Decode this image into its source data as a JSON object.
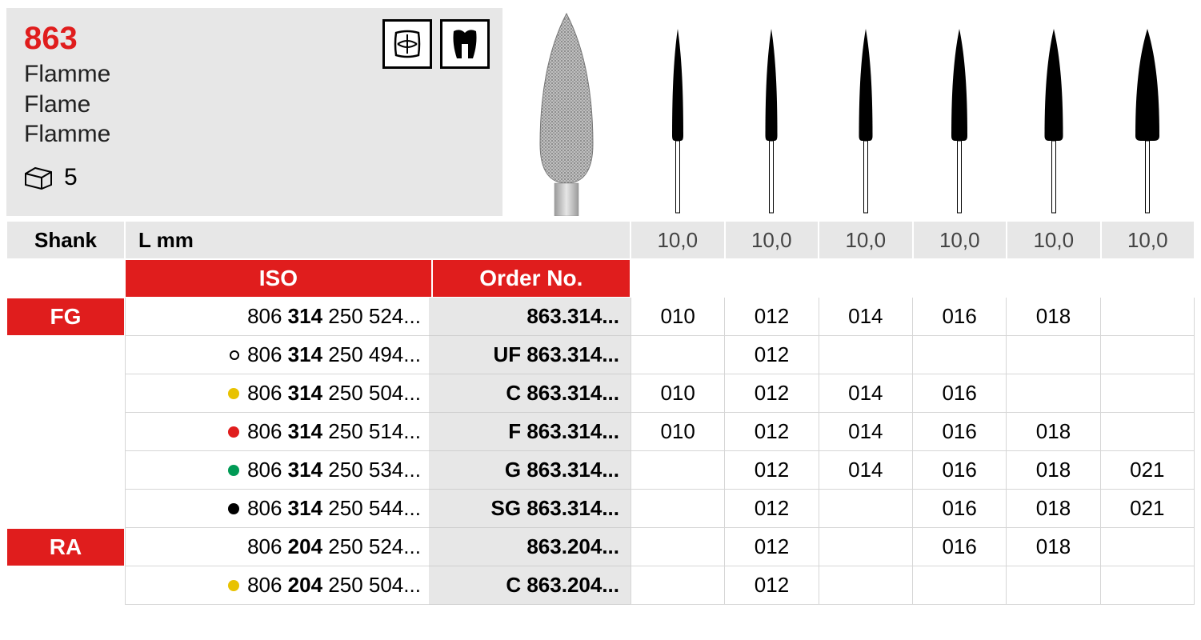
{
  "header": {
    "product_number": "863",
    "names": [
      "Flamme",
      "Flame",
      "Flamme"
    ],
    "pack_qty": "5"
  },
  "colors": {
    "red": "#e01d1d",
    "grey_bg": "#e7e7e7",
    "text": "#000000"
  },
  "burs": {
    "lengths": [
      "10,0",
      "10,0",
      "10,0",
      "10,0",
      "10,0",
      "10,0"
    ],
    "head_widths": [
      14,
      15,
      17,
      20,
      23,
      30
    ],
    "head_height": 140,
    "shaft_width": 5,
    "shaft_height": 90,
    "fill": "#000000"
  },
  "table": {
    "shank_label": "Shank",
    "lmm_label": "L mm",
    "iso_label": "ISO",
    "orderno_label": "Order No.",
    "shank_groups": [
      {
        "label": "FG",
        "span": 6
      },
      {
        "label": "RA",
        "span": 2
      }
    ],
    "rows": [
      {
        "dot": null,
        "iso_pre": "806 ",
        "iso_bold": "314",
        "iso_post": " 250 524...",
        "order": "863.314...",
        "sizes": [
          "010",
          "012",
          "014",
          "016",
          "018",
          ""
        ]
      },
      {
        "dot": "ring",
        "iso_pre": "806 ",
        "iso_bold": "314",
        "iso_post": " 250 494...",
        "order": "UF 863.314...",
        "sizes": [
          "",
          "012",
          "",
          "",
          "",
          ""
        ]
      },
      {
        "dot": "#e8c200",
        "iso_pre": "806 ",
        "iso_bold": "314",
        "iso_post": " 250 504...",
        "order": "C 863.314...",
        "sizes": [
          "010",
          "012",
          "014",
          "016",
          "",
          ""
        ]
      },
      {
        "dot": "#e01d1d",
        "iso_pre": "806 ",
        "iso_bold": "314",
        "iso_post": " 250 514...",
        "order": "F 863.314...",
        "sizes": [
          "010",
          "012",
          "014",
          "016",
          "018",
          ""
        ]
      },
      {
        "dot": "#009a55",
        "iso_pre": "806 ",
        "iso_bold": "314",
        "iso_post": " 250 534...",
        "order": "G 863.314...",
        "sizes": [
          "",
          "012",
          "014",
          "016",
          "018",
          "021"
        ]
      },
      {
        "dot": "#000000",
        "iso_pre": "806 ",
        "iso_bold": "314",
        "iso_post": " 250 544...",
        "order": "SG 863.314...",
        "sizes": [
          "",
          "012",
          "",
          "016",
          "018",
          "021"
        ]
      },
      {
        "dot": null,
        "iso_pre": "806 ",
        "iso_bold": "204",
        "iso_post": " 250 524...",
        "order": "863.204...",
        "sizes": [
          "",
          "012",
          "",
          "016",
          "018",
          ""
        ]
      },
      {
        "dot": "#e8c200",
        "iso_pre": "806 ",
        "iso_bold": "204",
        "iso_post": " 250 504...",
        "order": "C 863.204...",
        "sizes": [
          "",
          "012",
          "",
          "",
          "",
          ""
        ]
      }
    ]
  }
}
